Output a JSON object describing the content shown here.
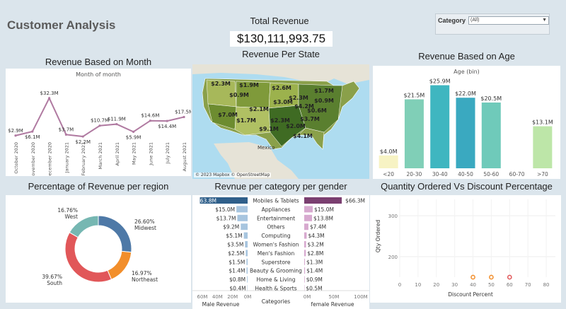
{
  "dashboard": {
    "title": "Customer Analysis",
    "total_revenue_label": "Total Revenue",
    "total_revenue_value": "$130,111,993.75",
    "filter_label": "Category",
    "filter_value": "(All)"
  },
  "month_chart": {
    "title": "Revenue Based on Month",
    "subtitle": "Month of month",
    "color": "#b07aa1",
    "chart_data": {
      "type": "line",
      "x": [
        "October 2020",
        "November 2020",
        "December 2020",
        "January 2021",
        "February 2021",
        "March 2021",
        "April 2021",
        "May 2021",
        "June 2021",
        "July 2021",
        "August 2021"
      ],
      "values": [
        2.9,
        6.1,
        32.3,
        3.7,
        2.2,
        10.7,
        11.9,
        5.9,
        14.6,
        14.4,
        17.5
      ],
      "labels": [
        "$2.9M",
        "$6.1M",
        "$32.3M",
        "$3.7M",
        "$2.2M",
        "$10.7M",
        "$11.9M",
        "$5.9M",
        "$14.6M",
        "$14.4M",
        "$17.5M"
      ]
    }
  },
  "state_map": {
    "title": "Revenue Per State",
    "attribution": "© 2023 Mapbox © OpenStreetMap",
    "country_label": "Mexico",
    "state_labels": [
      "$2.3M",
      "$1.9M",
      "$2.6M",
      "$0.9M",
      "$2.3M",
      "$1.7M",
      "$2.1M",
      "$3.0M",
      "$0.9M",
      "$4.2M",
      "$7.0M",
      "$0.6M",
      "$1.7M",
      "$2.3M",
      "$3.7M",
      "$9.1M",
      "$2.0M",
      "$4.1M"
    ]
  },
  "age_chart": {
    "title": "Revenue Based on Age",
    "subtitle": "Age (bin)",
    "chart_data": {
      "type": "bar",
      "categories": [
        "<20",
        "20-30",
        "30-40",
        "40-50",
        "50-60",
        "60-70",
        ">70"
      ],
      "values": [
        4.0,
        21.5,
        25.9,
        22.0,
        20.5,
        0,
        13.1
      ],
      "labels": [
        "$4.0M",
        "$21.5M",
        "$25.9M",
        "$22.0M",
        "$20.5M",
        "",
        "$13.1M"
      ],
      "colors": [
        "#f7f3c4",
        "#80cfb7",
        "#3fb6c0",
        "#3aa9c0",
        "#6fcaba",
        "#ffffff",
        "#bde6a8"
      ]
    }
  },
  "region_chart": {
    "title": "Percentage of Revenue per region",
    "chart_data": {
      "type": "pie",
      "slices": [
        {
          "name": "Midwest",
          "pct": "26.60%",
          "value": 26.6,
          "color": "#4e79a7"
        },
        {
          "name": "Northeast",
          "pct": "16.97%",
          "value": 16.97,
          "color": "#f28e2b"
        },
        {
          "name": "South",
          "pct": "39.67%",
          "value": 39.67,
          "color": "#e15759"
        },
        {
          "name": "West",
          "pct": "16.76%",
          "value": 16.76,
          "color": "#76b7b2"
        }
      ]
    }
  },
  "gender_chart": {
    "title": "Revnue per category per gender",
    "male_axis_label": "Male Revenue",
    "female_axis_label": "female Revenue",
    "categories_label": "Categories",
    "male_ticks": [
      "60M",
      "40M",
      "20M",
      "0M"
    ],
    "female_ticks": [
      "0M",
      "50M",
      "100M"
    ],
    "male_color": "#2f5f8a",
    "male_light": "#a7c5df",
    "female_color": "#7a3f70",
    "female_light": "#d7a9cf",
    "chart_data": {
      "type": "bar",
      "categories": [
        "Mobiles & Tablets",
        "Appliances",
        "Entertainment",
        "Others",
        "Computing",
        "Women's Fashion",
        "Men's Fashion",
        "Superstore",
        "Beauty & Grooming",
        "Home & Living",
        "Health & Sports"
      ],
      "series": [
        {
          "name": "Male Revenue",
          "values": [
            63.8,
            15.0,
            13.7,
            9.2,
            5.1,
            3.5,
            2.5,
            1.5,
            1.4,
            0.8,
            0.4
          ],
          "labels": [
            "$63.8M",
            "$15.0M",
            "$13.7M",
            "$9.2M",
            "$5.1M",
            "$3.5M",
            "$2.5M",
            "$1.5M",
            "$1.4M",
            "$0.8M",
            "$0.4M"
          ]
        },
        {
          "name": "female Revenue",
          "values": [
            66.3,
            15.0,
            13.8,
            7.4,
            4.3,
            3.2,
            2.8,
            1.3,
            1.4,
            0.9,
            0.5
          ],
          "labels": [
            "$66.3M",
            "$15.0M",
            "$13.8M",
            "$7.4M",
            "$4.3M",
            "$3.2M",
            "$2.8M",
            "$1.3M",
            "$1.4M",
            "$0.9M",
            "$0.5M"
          ]
        }
      ]
    }
  },
  "scatter_chart": {
    "title": "Quantity Ordered  Vs Discount Percentage",
    "xlabel": "Discount Percent",
    "ylabel": "Qty Ordered",
    "chart_data": {
      "type": "scatter",
      "xticks": [
        0,
        10,
        20,
        30,
        40,
        50,
        60,
        70,
        80
      ],
      "yticks": [
        200,
        300
      ],
      "points": [
        {
          "x": 40,
          "y": 0,
          "color": "#f28e2b"
        },
        {
          "x": 50,
          "y": 0,
          "color": "#f28e2b"
        },
        {
          "x": 60,
          "y": 0,
          "color": "#e15759"
        }
      ]
    }
  }
}
